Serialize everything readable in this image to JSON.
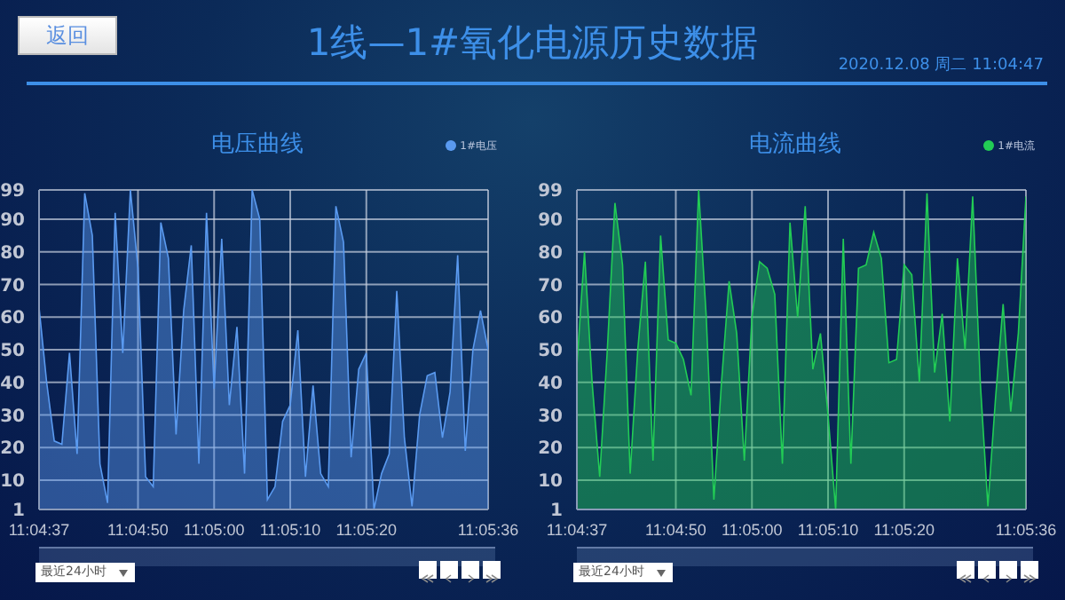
{
  "chart_data": [
    {
      "type": "area",
      "title": "电压曲线",
      "annotations": [
        "1线—1#氧化电源历史数据",
        "2020.12.08 周二 11:04:47",
        "返回",
        "最近24小时"
      ],
      "x": [
        "2020-12-08T11:04:37",
        "2020-12-08T11:04:38",
        "2020-12-08T11:04:39",
        "2020-12-08T11:04:40",
        "2020-12-08T11:04:41",
        "2020-12-08T11:04:42",
        "2020-12-08T11:04:43",
        "2020-12-08T11:04:44",
        "2020-12-08T11:04:45",
        "2020-12-08T11:04:46",
        "2020-12-08T11:04:47",
        "2020-12-08T11:04:48",
        "2020-12-08T11:04:49",
        "2020-12-08T11:04:50",
        "2020-12-08T11:04:51",
        "2020-12-08T11:04:52",
        "2020-12-08T11:04:53",
        "2020-12-08T11:04:54",
        "2020-12-08T11:04:55",
        "2020-12-08T11:04:56",
        "2020-12-08T11:04:57",
        "2020-12-08T11:04:58",
        "2020-12-08T11:04:59",
        "2020-12-08T11:05:00",
        "2020-12-08T11:05:01",
        "2020-12-08T11:05:02",
        "2020-12-08T11:05:03",
        "2020-12-08T11:05:04",
        "2020-12-08T11:05:05",
        "2020-12-08T11:05:06",
        "2020-12-08T11:05:07",
        "2020-12-08T11:05:08",
        "2020-12-08T11:05:09",
        "2020-12-08T11:05:10",
        "2020-12-08T11:05:11",
        "2020-12-08T11:05:12",
        "2020-12-08T11:05:13",
        "2020-12-08T11:05:14",
        "2020-12-08T11:05:15",
        "2020-12-08T11:05:16",
        "2020-12-08T11:05:17",
        "2020-12-08T11:05:18",
        "2020-12-08T11:05:19",
        "2020-12-08T11:05:20",
        "2020-12-08T11:05:21",
        "2020-12-08T11:05:22",
        "2020-12-08T11:05:23",
        "2020-12-08T11:05:24",
        "2020-12-08T11:05:25",
        "2020-12-08T11:05:26",
        "2020-12-08T11:05:27",
        "2020-12-08T11:05:28",
        "2020-12-08T11:05:29",
        "2020-12-08T11:05:30",
        "2020-12-08T11:05:31",
        "2020-12-08T11:05:32",
        "2020-12-08T11:05:33",
        "2020-12-08T11:05:34",
        "2020-12-08T11:05:35",
        "2020-12-08T11:05:36"
      ],
      "series": [
        {
          "name": "1#电压",
          "color": "#5a9af0",
          "values": [
            63,
            40,
            22,
            21,
            49,
            18,
            98,
            85,
            15,
            3,
            92,
            49,
            99,
            75,
            11,
            8,
            89,
            78,
            24,
            62,
            82,
            15,
            92,
            38,
            84,
            33,
            57,
            12,
            99,
            90,
            4,
            8,
            28,
            33,
            56,
            11,
            39,
            12,
            8,
            94,
            83,
            17,
            44,
            49,
            1,
            12,
            18,
            68,
            23,
            2,
            30,
            42,
            43,
            23,
            37,
            79,
            19,
            50,
            62,
            50
          ]
        }
      ],
      "xlim": [
        "2020-12-08T11:04:37",
        "2020-12-08T11:05:36"
      ],
      "xticks": [
        {
          "value": "2020-12-08T11:04:37",
          "label": "11:04:37"
        },
        {
          "value": "2020-12-08T11:04:50",
          "label": "11:04:50"
        },
        {
          "value": "2020-12-08T11:05:00",
          "label": "11:05:00"
        },
        {
          "value": "2020-12-08T11:05:10",
          "label": "11:05:10"
        },
        {
          "value": "2020-12-08T11:05:20",
          "label": "11:05:20"
        },
        {
          "value": "2020-12-08T11:05:36",
          "label": "11:05:36"
        }
      ],
      "ylim": [
        1,
        99
      ],
      "yticks": [
        1,
        10,
        20,
        30,
        40,
        50,
        60,
        70,
        80,
        90,
        99
      ],
      "grid": true,
      "legend": "top right"
    },
    {
      "type": "area",
      "title": "电流曲线",
      "annotations": [
        "最近24小时"
      ],
      "x": [
        "2020-12-08T11:04:37",
        "2020-12-08T11:04:38",
        "2020-12-08T11:04:39",
        "2020-12-08T11:04:40",
        "2020-12-08T11:04:41",
        "2020-12-08T11:04:42",
        "2020-12-08T11:04:43",
        "2020-12-08T11:04:44",
        "2020-12-08T11:04:45",
        "2020-12-08T11:04:46",
        "2020-12-08T11:04:47",
        "2020-12-08T11:04:48",
        "2020-12-08T11:04:49",
        "2020-12-08T11:04:50",
        "2020-12-08T11:04:51",
        "2020-12-08T11:04:52",
        "2020-12-08T11:04:53",
        "2020-12-08T11:04:54",
        "2020-12-08T11:04:55",
        "2020-12-08T11:04:56",
        "2020-12-08T11:04:57",
        "2020-12-08T11:04:58",
        "2020-12-08T11:04:59",
        "2020-12-08T11:05:00",
        "2020-12-08T11:05:01",
        "2020-12-08T11:05:02",
        "2020-12-08T11:05:03",
        "2020-12-08T11:05:04",
        "2020-12-08T11:05:05",
        "2020-12-08T11:05:06",
        "2020-12-08T11:05:07",
        "2020-12-08T11:05:08",
        "2020-12-08T11:05:09",
        "2020-12-08T11:05:10",
        "2020-12-08T11:05:11",
        "2020-12-08T11:05:12",
        "2020-12-08T11:05:13",
        "2020-12-08T11:05:14",
        "2020-12-08T11:05:15",
        "2020-12-08T11:05:16",
        "2020-12-08T11:05:17",
        "2020-12-08T11:05:18",
        "2020-12-08T11:05:19",
        "2020-12-08T11:05:20",
        "2020-12-08T11:05:21",
        "2020-12-08T11:05:22",
        "2020-12-08T11:05:23",
        "2020-12-08T11:05:24",
        "2020-12-08T11:05:25",
        "2020-12-08T11:05:26",
        "2020-12-08T11:05:27",
        "2020-12-08T11:05:28",
        "2020-12-08T11:05:29",
        "2020-12-08T11:05:30",
        "2020-12-08T11:05:31",
        "2020-12-08T11:05:32",
        "2020-12-08T11:05:33",
        "2020-12-08T11:05:34",
        "2020-12-08T11:05:35",
        "2020-12-08T11:05:36"
      ],
      "series": [
        {
          "name": "1#电流",
          "color": "#22cc55",
          "values": [
            45,
            80,
            40,
            11,
            50,
            95,
            76,
            12,
            50,
            77,
            16,
            85,
            53,
            52,
            47,
            36,
            99,
            60,
            4,
            40,
            71,
            55,
            16,
            60,
            77,
            75,
            67,
            15,
            89,
            60,
            94,
            44,
            55,
            30,
            1,
            84,
            15,
            75,
            76,
            86,
            78,
            46,
            47,
            76,
            73,
            40,
            98,
            43,
            61,
            28,
            78,
            50,
            97,
            40,
            2,
            35,
            64,
            31,
            55,
            97
          ]
        }
      ],
      "xlim": [
        "2020-12-08T11:04:37",
        "2020-12-08T11:05:36"
      ],
      "xticks": [
        {
          "value": "2020-12-08T11:04:37",
          "label": "11:04:37"
        },
        {
          "value": "2020-12-08T11:04:50",
          "label": "11:04:50"
        },
        {
          "value": "2020-12-08T11:05:00",
          "label": "11:05:00"
        },
        {
          "value": "2020-12-08T11:05:10",
          "label": "11:05:10"
        },
        {
          "value": "2020-12-08T11:05:20",
          "label": "11:05:20"
        },
        {
          "value": "2020-12-08T11:05:36",
          "label": "11:05:36"
        }
      ],
      "ylim": [
        1,
        99
      ],
      "yticks": [
        1,
        10,
        20,
        30,
        40,
        50,
        60,
        70,
        80,
        90,
        99
      ],
      "grid": true,
      "legend": "top right"
    }
  ]
}
